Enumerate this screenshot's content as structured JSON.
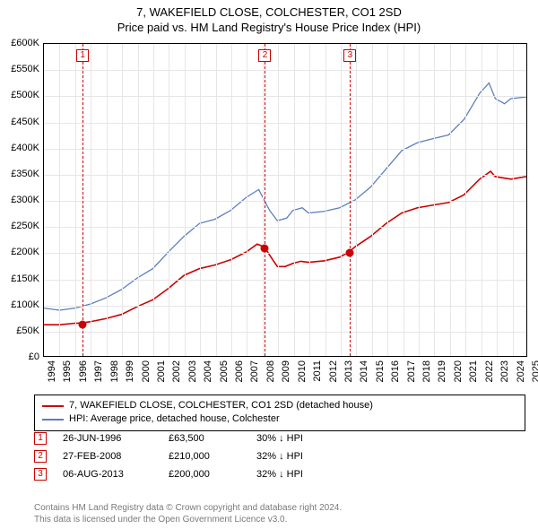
{
  "title": "7, WAKEFIELD CLOSE, COLCHESTER, CO1 2SD",
  "subtitle": "Price paid vs. HM Land Registry's House Price Index (HPI)",
  "chart": {
    "type": "line",
    "background_color": "#ffffff",
    "grid_color": "#e6e6e6",
    "border_color": "#000000",
    "x_start": 1994,
    "x_end": 2025,
    "x_ticks": [
      1994,
      1995,
      1996,
      1997,
      1998,
      1999,
      2000,
      2001,
      2002,
      2003,
      2004,
      2005,
      2006,
      2007,
      2008,
      2009,
      2010,
      2011,
      2012,
      2013,
      2014,
      2015,
      2016,
      2017,
      2018,
      2019,
      2020,
      2021,
      2022,
      2023,
      2024,
      2025
    ],
    "y_min": 0,
    "y_max": 600000,
    "y_ticks": [
      {
        "v": 0,
        "label": "£0"
      },
      {
        "v": 50000,
        "label": "£50K"
      },
      {
        "v": 100000,
        "label": "£100K"
      },
      {
        "v": 150000,
        "label": "£150K"
      },
      {
        "v": 200000,
        "label": "£200K"
      },
      {
        "v": 250000,
        "label": "£250K"
      },
      {
        "v": 300000,
        "label": "£300K"
      },
      {
        "v": 350000,
        "label": "£350K"
      },
      {
        "v": 400000,
        "label": "£400K"
      },
      {
        "v": 450000,
        "label": "£450K"
      },
      {
        "v": 500000,
        "label": "£500K"
      },
      {
        "v": 550000,
        "label": "£550K"
      },
      {
        "v": 600000,
        "label": "£600K"
      }
    ],
    "tick_fontsize": 11,
    "series": [
      {
        "name": "price_paid",
        "color": "#cc0000",
        "width": 1.6,
        "data": [
          [
            1994,
            60000
          ],
          [
            1995,
            60000
          ],
          [
            1996,
            63000
          ],
          [
            1996.48,
            63500
          ],
          [
            1997,
            66000
          ],
          [
            1998,
            72000
          ],
          [
            1999,
            80000
          ],
          [
            2000,
            95000
          ],
          [
            2001,
            108000
          ],
          [
            2002,
            130000
          ],
          [
            2003,
            155000
          ],
          [
            2004,
            168000
          ],
          [
            2005,
            175000
          ],
          [
            2006,
            185000
          ],
          [
            2007,
            200000
          ],
          [
            2007.7,
            215000
          ],
          [
            2008.15,
            210000
          ],
          [
            2008.7,
            185000
          ],
          [
            2009,
            172000
          ],
          [
            2009.5,
            172000
          ],
          [
            2010,
            178000
          ],
          [
            2010.5,
            182000
          ],
          [
            2011,
            180000
          ],
          [
            2012,
            183000
          ],
          [
            2013,
            190000
          ],
          [
            2013.6,
            200000
          ],
          [
            2014,
            210000
          ],
          [
            2015,
            230000
          ],
          [
            2016,
            255000
          ],
          [
            2017,
            275000
          ],
          [
            2018,
            285000
          ],
          [
            2019,
            290000
          ],
          [
            2020,
            295000
          ],
          [
            2021,
            310000
          ],
          [
            2022,
            340000
          ],
          [
            2022.7,
            355000
          ],
          [
            2023,
            345000
          ],
          [
            2024,
            340000
          ],
          [
            2025,
            345000
          ]
        ]
      },
      {
        "name": "hpi",
        "color": "#5b7fbf",
        "width": 1.3,
        "data": [
          [
            1994,
            92000
          ],
          [
            1995,
            88000
          ],
          [
            1996,
            92000
          ],
          [
            1997,
            100000
          ],
          [
            1998,
            112000
          ],
          [
            1999,
            128000
          ],
          [
            2000,
            150000
          ],
          [
            2001,
            168000
          ],
          [
            2002,
            200000
          ],
          [
            2003,
            230000
          ],
          [
            2004,
            255000
          ],
          [
            2005,
            263000
          ],
          [
            2006,
            280000
          ],
          [
            2007,
            305000
          ],
          [
            2007.8,
            320000
          ],
          [
            2008.5,
            280000
          ],
          [
            2009,
            260000
          ],
          [
            2009.6,
            265000
          ],
          [
            2010,
            280000
          ],
          [
            2010.6,
            285000
          ],
          [
            2011,
            275000
          ],
          [
            2012,
            278000
          ],
          [
            2013,
            285000
          ],
          [
            2014,
            300000
          ],
          [
            2015,
            325000
          ],
          [
            2016,
            360000
          ],
          [
            2017,
            395000
          ],
          [
            2018,
            410000
          ],
          [
            2019,
            418000
          ],
          [
            2020,
            425000
          ],
          [
            2021,
            455000
          ],
          [
            2022,
            505000
          ],
          [
            2022.6,
            525000
          ],
          [
            2023,
            495000
          ],
          [
            2023.6,
            485000
          ],
          [
            2024,
            495000
          ],
          [
            2025,
            498000
          ]
        ]
      }
    ],
    "markers": [
      {
        "n": "1",
        "x": 1996.48,
        "y": 63500
      },
      {
        "n": "2",
        "x": 2008.15,
        "y": 210000
      },
      {
        "n": "3",
        "x": 2013.6,
        "y": 200000
      }
    ],
    "marker_color": "#cc0000",
    "marker_vline_dash": "3,3"
  },
  "legend": {
    "items": [
      {
        "color": "#cc0000",
        "label": "7, WAKEFIELD CLOSE, COLCHESTER, CO1 2SD (detached house)"
      },
      {
        "color": "#5b7fbf",
        "label": "HPI: Average price, detached house, Colchester"
      }
    ]
  },
  "notes": [
    {
      "n": "1",
      "date": "26-JUN-1996",
      "price": "£63,500",
      "delta": "30% ↓ HPI"
    },
    {
      "n": "2",
      "date": "27-FEB-2008",
      "price": "£210,000",
      "delta": "32% ↓ HPI"
    },
    {
      "n": "3",
      "date": "06-AUG-2013",
      "price": "£200,000",
      "delta": "32% ↓ HPI"
    }
  ],
  "footer": {
    "line1": "Contains HM Land Registry data © Crown copyright and database right 2024.",
    "line2": "This data is licensed under the Open Government Licence v3.0."
  }
}
